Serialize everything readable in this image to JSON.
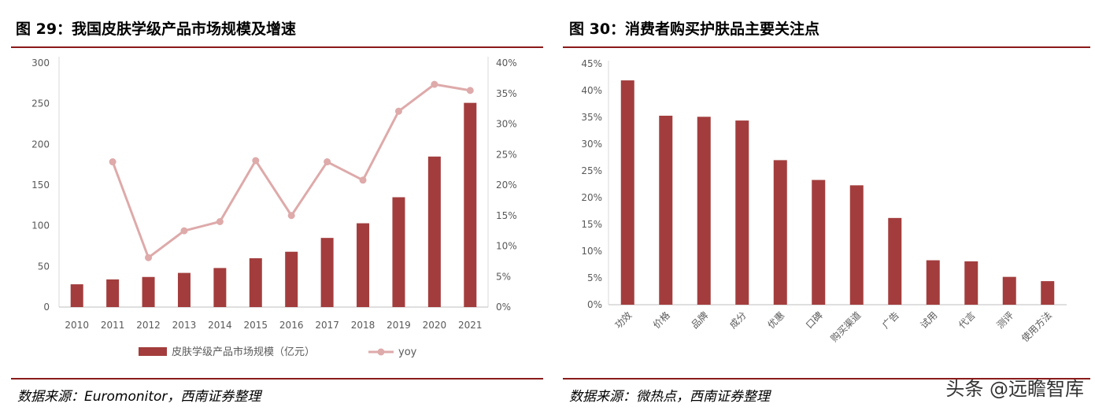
{
  "left": {
    "title": "图 29：我国皮肤学级产品市场规模及增速",
    "source": "数据来源：Euromonitor，西南证券整理"
  },
  "right": {
    "title": "图 30：消费者购买护肤品主要关注点",
    "source": "数据来源：微热点，西南证券整理"
  },
  "watermark": "头条 @远瞻智库",
  "colors": {
    "bar": "#a33d3d",
    "line": "#deaaaa",
    "rule": "#8b1a1a"
  },
  "chart_data": [
    {
      "type": "bar",
      "categories": [
        "2010",
        "2011",
        "2012",
        "2013",
        "2014",
        "2015",
        "2016",
        "2017",
        "2018",
        "2019",
        "2020",
        "2021"
      ],
      "series": [
        {
          "name": "皮肤学级产品市场规模（亿元）",
          "type": "bar",
          "axis": "left",
          "values": [
            28,
            34,
            37,
            42,
            48,
            60,
            68,
            85,
            103,
            135,
            185,
            251
          ]
        },
        {
          "name": "yoy",
          "type": "line",
          "axis": "right",
          "values": [
            null,
            23.8,
            8.1,
            12.5,
            14.0,
            24.0,
            15.0,
            23.8,
            20.8,
            32.1,
            36.5,
            35.5
          ]
        }
      ],
      "ylim": [
        0,
        300
      ],
      "yticks": [
        "0",
        "50",
        "100",
        "150",
        "200",
        "250",
        "300"
      ],
      "y2lim": [
        0,
        40
      ],
      "y2ticks": [
        "0%",
        "5%",
        "10%",
        "15%",
        "20%",
        "25%",
        "30%",
        "35%",
        "40%"
      ],
      "legend": "bottom"
    },
    {
      "type": "bar",
      "categories": [
        "功效",
        "价格",
        "品牌",
        "成分",
        "优惠",
        "口碑",
        "购买渠道",
        "广告",
        "试用",
        "代言",
        "测评",
        "使用方法"
      ],
      "values": [
        41.9,
        35.3,
        35.1,
        34.4,
        27.0,
        23.3,
        22.3,
        16.2,
        8.3,
        8.1,
        5.2,
        4.4
      ],
      "ylim": [
        0,
        45
      ],
      "yticks": [
        "0%",
        "5%",
        "10%",
        "15%",
        "20%",
        "25%",
        "30%",
        "35%",
        "40%",
        "45%"
      ]
    }
  ]
}
